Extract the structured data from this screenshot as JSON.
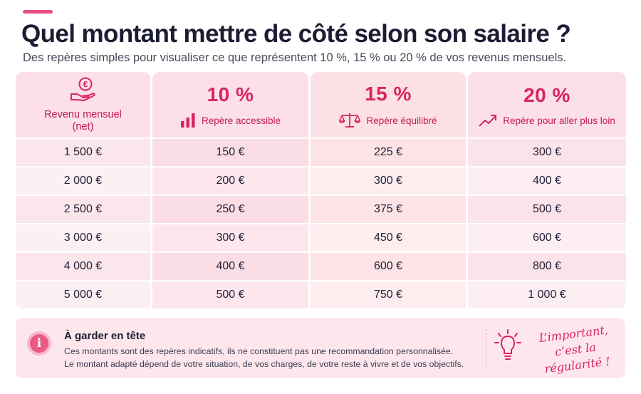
{
  "header": {
    "title": "Quel montant mettre de côté selon son salaire ?",
    "subtitle": "Des repères simples pour visualiser ce que représentent 10 %, 15 % ou 20 % de vos revenus mensuels."
  },
  "table": {
    "columns": [
      {
        "label": "Revenu mensuel\n(net)",
        "icon": "euro-hand-icon"
      },
      {
        "percent": "10 %",
        "label": "Repère accessible",
        "icon": "bar-chart-icon"
      },
      {
        "percent": "15 %",
        "label": "Repère équilibré",
        "icon": "scale-icon"
      },
      {
        "percent": "20 %",
        "label": "Repère pour aller plus loin",
        "icon": "trend-up-icon"
      }
    ],
    "rows": [
      [
        "1 500 €",
        "150 €",
        "225 €",
        "300 €"
      ],
      [
        "2 000 €",
        "200 €",
        "300 €",
        "400 €"
      ],
      [
        "2 500 €",
        "250 €",
        "375 €",
        "500 €"
      ],
      [
        "3 000 €",
        "300 €",
        "450 €",
        "600 €"
      ],
      [
        "4 000 €",
        "400 €",
        "600 €",
        "800 €"
      ],
      [
        "5 000 €",
        "500 €",
        "750 €",
        "1 000 €"
      ]
    ]
  },
  "note": {
    "icon": "info-icon",
    "icon_glyph": "i",
    "title": "À garder en tête",
    "line1": "Ces montants sont des repères indicatifs, ils ne constituent pas une recommandation personnalisée.",
    "line2": "Le montant adapté dépend de votre situation, de vos charges, de votre reste à vivre et de vos objectifs.",
    "slogan_line1": "L’important,",
    "slogan_line2": "c’est la régularité !",
    "slogan_icon": "lightbulb-icon"
  },
  "colors": {
    "accent": "#d8245f",
    "title": "#1c1c33",
    "accent_bar": "#e84f7f"
  }
}
